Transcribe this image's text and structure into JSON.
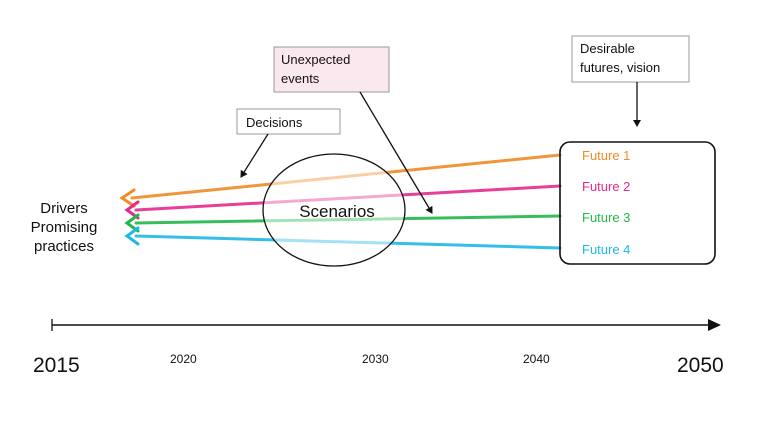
{
  "labels": {
    "drivers": [
      "Drivers",
      "Promising",
      "practices"
    ],
    "scenarios": "Scenarios",
    "decisions": "Decisions",
    "unexpected": [
      "Unexpected",
      "events"
    ],
    "desirable": [
      "Desirable",
      "futures, vision"
    ]
  },
  "futures": [
    {
      "name": "Future 1",
      "color": "#f08a24"
    },
    {
      "name": "Future 2",
      "color": "#e62a8c"
    },
    {
      "name": "Future 3",
      "color": "#22b84a"
    },
    {
      "name": "Future 4",
      "color": "#1fb8e6"
    }
  ],
  "timeline": {
    "start_label": "2015",
    "end_label": "2050",
    "ticks": [
      "2020",
      "2030",
      "2040"
    ]
  },
  "colors": {
    "unexpected_box": "#fbe8ef",
    "lines": "#111111"
  }
}
